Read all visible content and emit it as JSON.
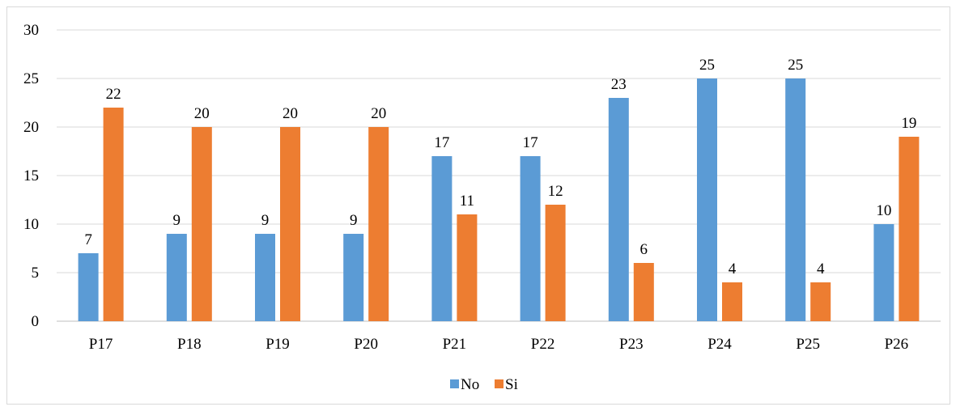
{
  "chart_data": {
    "type": "bar",
    "categories": [
      "P17",
      "P18",
      "P19",
      "P20",
      "P21",
      "P22",
      "P23",
      "P24",
      "P25",
      "P26"
    ],
    "series": [
      {
        "name": "No",
        "color": "#5b9bd5",
        "values": [
          7,
          9,
          9,
          9,
          17,
          17,
          23,
          25,
          25,
          10
        ]
      },
      {
        "name": "Si",
        "color": "#ed7d31",
        "values": [
          22,
          20,
          20,
          20,
          11,
          12,
          6,
          4,
          4,
          19
        ]
      }
    ],
    "ylim": [
      0,
      30
    ],
    "yticks": [
      0,
      5,
      10,
      15,
      20,
      25,
      30
    ],
    "grid": true,
    "data_labels": true,
    "legend_position": "bottom",
    "title": "",
    "xlabel": "",
    "ylabel": ""
  }
}
